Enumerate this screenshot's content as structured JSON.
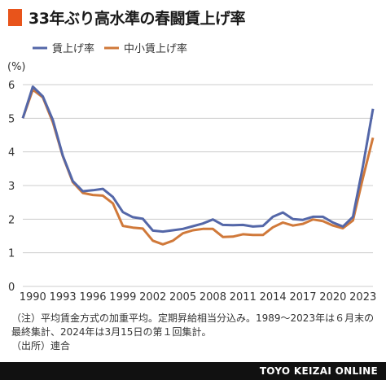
{
  "title": "33年ぶり高水準の春闘賃上げ率",
  "unit_label": "(%)",
  "colors": {
    "accent": "#e8541b",
    "series1": "#5467a8",
    "series2": "#d0793a",
    "grid": "#cccccc"
  },
  "chart_data": {
    "type": "line",
    "ylim": [
      0,
      6
    ],
    "yticks": [
      0,
      1,
      2,
      3,
      4,
      5,
      6
    ],
    "xticks": [
      1990,
      1993,
      1996,
      1999,
      2002,
      2005,
      2008,
      2011,
      2014,
      2017,
      2020,
      2023
    ],
    "xlim": [
      1989,
      2024
    ],
    "grid": true,
    "legend_position": "top-left",
    "x": [
      1989,
      1990,
      1991,
      1992,
      1993,
      1994,
      1995,
      1996,
      1997,
      1998,
      1999,
      2000,
      2001,
      2002,
      2003,
      2004,
      2005,
      2006,
      2007,
      2008,
      2009,
      2010,
      2011,
      2012,
      2013,
      2014,
      2015,
      2016,
      2017,
      2018,
      2019,
      2020,
      2021,
      2022,
      2023,
      2024
    ],
    "series": [
      {
        "name": "賃上げ率",
        "values": [
          5.0,
          5.94,
          5.65,
          4.95,
          3.89,
          3.13,
          2.83,
          2.86,
          2.9,
          2.66,
          2.21,
          2.06,
          2.01,
          1.66,
          1.63,
          1.67,
          1.71,
          1.79,
          1.87,
          1.99,
          1.83,
          1.82,
          1.83,
          1.78,
          1.8,
          2.07,
          2.2,
          2.0,
          1.98,
          2.07,
          2.07,
          1.9,
          1.78,
          2.07,
          3.58,
          5.28
        ]
      },
      {
        "name": "中小賃上げ率",
        "values": [
          5.0,
          5.85,
          5.62,
          4.88,
          3.87,
          3.1,
          2.78,
          2.72,
          2.7,
          2.47,
          1.8,
          1.75,
          1.72,
          1.36,
          1.25,
          1.36,
          1.58,
          1.67,
          1.71,
          1.71,
          1.47,
          1.48,
          1.55,
          1.53,
          1.53,
          1.76,
          1.9,
          1.81,
          1.86,
          1.99,
          1.94,
          1.81,
          1.73,
          1.96,
          3.23,
          4.42
        ]
      }
    ]
  },
  "notes": [
    "（注）平均賃金方式の加重平均。定期昇給相当分込み。1989〜2023年は６月末の",
    "最終集計、2024年は3月15日の第１回集計。",
    "（出所）連合"
  ],
  "footer": "TOYO KEIZAI ONLINE"
}
